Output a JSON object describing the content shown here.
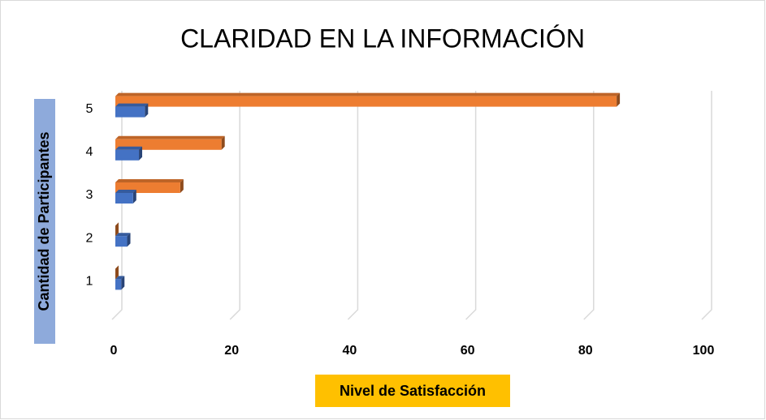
{
  "chart_data": {
    "type": "hbar3d",
    "title": "CLARIDAD EN LA INFORMACIÓN",
    "x_label": "Nivel de Satisfacción",
    "y_label": "Cantidad de Participantes",
    "categories": [
      "1",
      "2",
      "3",
      "4",
      "5"
    ],
    "series": [
      {
        "color": "#4472c4",
        "values": [
          1,
          2,
          3,
          4,
          5
        ]
      },
      {
        "color": "#ed7d31",
        "values": [
          0,
          0,
          11,
          18,
          85
        ]
      }
    ],
    "xlim": [
      0,
      100
    ],
    "xticks": [
      0,
      20,
      40,
      60,
      80,
      100
    ],
    "grid": true
  }
}
